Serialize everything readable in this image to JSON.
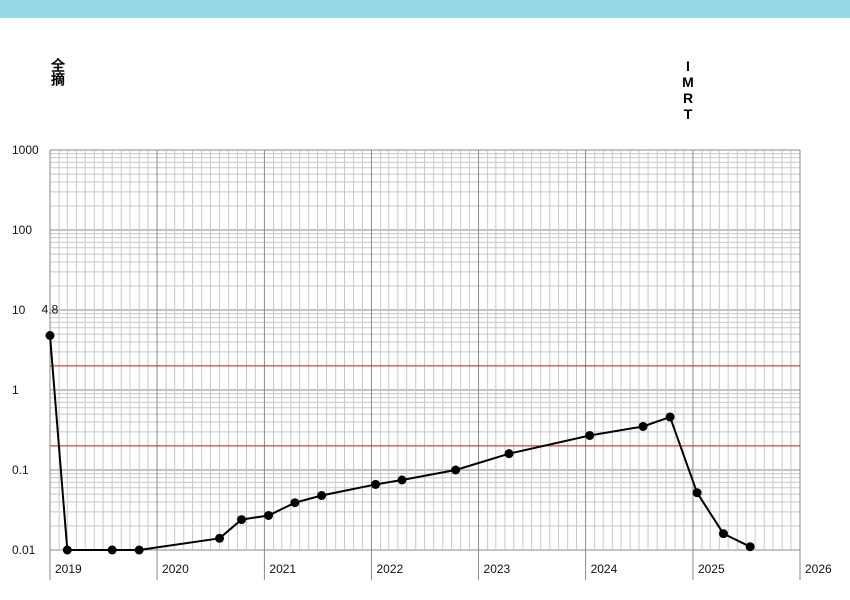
{
  "header": {
    "bar_color": "#99d9e6"
  },
  "labels": {
    "left": "全摘",
    "right": "IMRT"
  },
  "chart_data": {
    "type": "line",
    "title": "",
    "xlabel": "",
    "ylabel": "",
    "y_scale": "log",
    "ylim": [
      0.01,
      1000
    ],
    "xlim": [
      "2019-01-01",
      "2026-01-01"
    ],
    "y_tick_labels": [
      "1000",
      "100",
      "10",
      "1",
      "0.1",
      "0.01"
    ],
    "x_tick_labels": [
      "2019",
      "2020",
      "2021",
      "2022",
      "2023",
      "2024",
      "2025",
      "2026"
    ],
    "grid": true,
    "reference_lines": [
      {
        "y": 2,
        "color": "#d02020"
      },
      {
        "y": 0.2,
        "color": "#d02020"
      }
    ],
    "annotations": [
      {
        "text": "4.8",
        "x": "2019-01-01",
        "y": 4.8
      }
    ],
    "series": [
      {
        "color": "#000000",
        "points": [
          {
            "x": "2019-01-01",
            "y": 4.8
          },
          {
            "x": "2019-03-01",
            "y": 0.01
          },
          {
            "x": "2019-08-01",
            "y": 0.01
          },
          {
            "x": "2019-11-01",
            "y": 0.01
          },
          {
            "x": "2020-08-01",
            "y": 0.014
          },
          {
            "x": "2020-10-15",
            "y": 0.024
          },
          {
            "x": "2021-01-15",
            "y": 0.027
          },
          {
            "x": "2021-04-15",
            "y": 0.039
          },
          {
            "x": "2021-07-15",
            "y": 0.048
          },
          {
            "x": "2022-01-15",
            "y": 0.066
          },
          {
            "x": "2022-04-15",
            "y": 0.075
          },
          {
            "x": "2022-10-15",
            "y": 0.1
          },
          {
            "x": "2023-04-15",
            "y": 0.16
          },
          {
            "x": "2024-01-15",
            "y": 0.27
          },
          {
            "x": "2024-07-15",
            "y": 0.35
          },
          {
            "x": "2024-10-15",
            "y": 0.46
          },
          {
            "x": "2025-01-15",
            "y": 0.052
          },
          {
            "x": "2025-04-15",
            "y": 0.016
          },
          {
            "x": "2025-07-15",
            "y": 0.011
          }
        ]
      }
    ]
  }
}
